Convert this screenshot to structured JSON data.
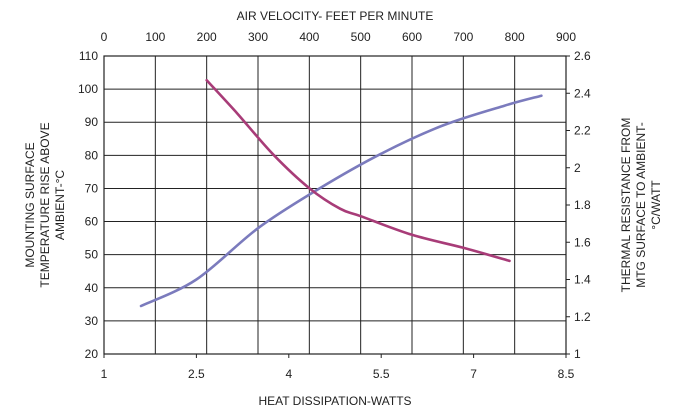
{
  "chart_data": {
    "type": "line",
    "top_axis": {
      "label": "AIR VELOCITY- FEET PER MINUTE",
      "ticks": [
        0,
        100,
        200,
        300,
        400,
        500,
        600,
        700,
        800,
        900
      ],
      "tick_labels": [
        "0",
        "100",
        "200",
        "300",
        "400",
        "500",
        "600",
        "700",
        "800",
        "900"
      ],
      "range": [
        0,
        900
      ]
    },
    "bottom_axis": {
      "label": "HEAT DISSIPATION-WATTS",
      "ticks": [
        1,
        2.5,
        4,
        5.5,
        7,
        8.5
      ],
      "tick_labels": [
        "1",
        "2.5",
        "4",
        "5.5",
        "7",
        "8.5"
      ],
      "range": [
        1,
        8.5
      ]
    },
    "left_axis": {
      "label_lines": [
        "MOUNTING SURFACE",
        "TEMPERATURE RISE ABOVE",
        "AMBIENT-°C"
      ],
      "ticks": [
        20,
        30,
        40,
        50,
        60,
        70,
        80,
        90,
        100,
        110
      ],
      "tick_labels": [
        "20",
        "30",
        "40",
        "50",
        "60",
        "70",
        "80",
        "90",
        "100",
        "110"
      ],
      "range": [
        20,
        110
      ]
    },
    "right_axis": {
      "label_lines": [
        "THERMAL RESISTANCE FROM",
        "MTG SURFACE TO AMBIENT-",
        "°C/WATT"
      ],
      "ticks": [
        1,
        1.2,
        1.4,
        1.6,
        1.8,
        2,
        2.2,
        2.4,
        2.6
      ],
      "tick_labels": [
        "1",
        "1.2",
        "1.4",
        "1.6",
        "1.8",
        "2",
        "2.2",
        "2.4",
        "2.6"
      ],
      "range": [
        1,
        2.6
      ]
    },
    "grid": true,
    "series": [
      {
        "x_axis": "bottom",
        "y_axis": "left",
        "color": "#7b7bbd",
        "points": [
          [
            1.6,
            34.5
          ],
          [
            2.5,
            42.5
          ],
          [
            3.5,
            58
          ],
          [
            4.5,
            70
          ],
          [
            5.5,
            80.5
          ],
          [
            6.5,
            89
          ],
          [
            7.5,
            95
          ],
          [
            8.1,
            98
          ]
        ]
      },
      {
        "x_axis": "top",
        "y_axis": "right",
        "color": "#a83c78",
        "points": [
          [
            200,
            2.47
          ],
          [
            260,
            2.29
          ],
          [
            330,
            2.07
          ],
          [
            400,
            1.89
          ],
          [
            460,
            1.78
          ],
          [
            500,
            1.74
          ],
          [
            600,
            1.64
          ],
          [
            700,
            1.57
          ],
          [
            790,
            1.5
          ]
        ]
      }
    ]
  }
}
